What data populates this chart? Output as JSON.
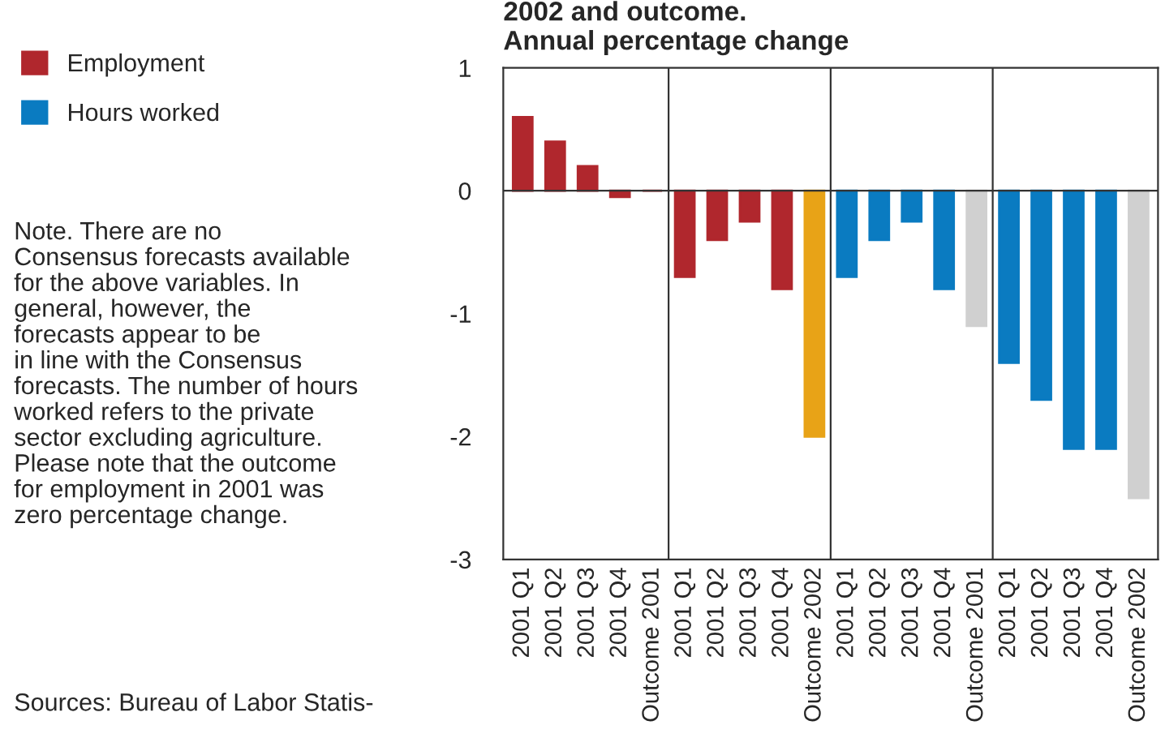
{
  "chart_data": {
    "type": "bar",
    "title": "2002 and outcome.\nAnnual percentage change",
    "categories": [
      "2001 Q1",
      "2001 Q2",
      "2001 Q3",
      "2001 Q4",
      "Outcome 2001",
      "2001 Q1",
      "2001 Q2",
      "2001 Q3",
      "2001 Q4",
      "Outcome 2002",
      "2001 Q1",
      "2001 Q2",
      "2001 Q3",
      "2001 Q4",
      "Outcome 2001",
      "2001 Q1",
      "2001 Q2",
      "2001 Q3",
      "2001 Q4",
      "Outcome 2002"
    ],
    "series": [
      {
        "name": "Employment",
        "color": "#b0272d",
        "colors": [
          "#b0272d",
          "#b0272d",
          "#b0272d",
          "#b0272d",
          "#b0272d",
          "#b0272d",
          "#b0272d",
          "#b0272d",
          "#b0272d",
          "#e8a317",
          null,
          null,
          null,
          null,
          null,
          null,
          null,
          null,
          null,
          null
        ],
        "values": [
          0.6,
          0.4,
          0.2,
          -0.05,
          0,
          -0.7,
          -0.4,
          -0.25,
          -0.8,
          -2.0,
          null,
          null,
          null,
          null,
          null,
          null,
          null,
          null,
          null,
          null
        ]
      },
      {
        "name": "Hours worked",
        "color": "#0a7bc1",
        "colors": [
          null,
          null,
          null,
          null,
          null,
          null,
          null,
          null,
          null,
          null,
          "#0a7bc1",
          "#0a7bc1",
          "#0a7bc1",
          "#0a7bc1",
          "#d0d0d0",
          "#0a7bc1",
          "#0a7bc1",
          "#0a7bc1",
          "#0a7bc1",
          "#d0d0d0"
        ],
        "values": [
          null,
          null,
          null,
          null,
          null,
          null,
          null,
          null,
          null,
          null,
          -0.7,
          -0.4,
          -0.25,
          -0.8,
          -1.1,
          -1.4,
          -1.7,
          -2.1,
          -2.1,
          -2.5
        ]
      }
    ],
    "ylim": [
      -3,
      1
    ],
    "yticks": [
      {
        "value": -3,
        "label": "-3"
      },
      {
        "value": -2,
        "label": "-2"
      },
      {
        "value": -1,
        "label": "-1"
      },
      0,
      1
    ],
    "ref_lines": [
      {
        "axis": "y",
        "value": 0,
        "color": "#333333"
      }
    ],
    "grid": false,
    "legend": "top left",
    "annotations": [
      "Note. There are no\nConsensus forecasts available\nfor the above variables. In\ngeneral, however, the\nforecasts appear to be\nin line with the Consensus\nforecasts. The number of hours\nworked refers to the private\nsector excluding agriculture.\nPlease note that the outcome\nfor employment in 2001 was\nzero percentage change.",
      "Sources: Bureau of Labor Statis-"
    ]
  }
}
